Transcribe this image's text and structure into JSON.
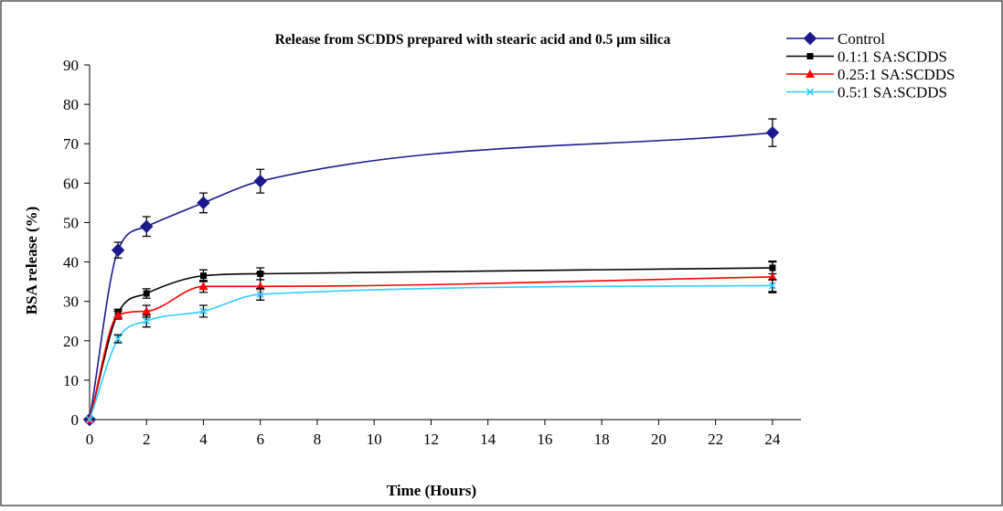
{
  "chart_data": {
    "type": "line",
    "title": "Release from SCDDS prepared with stearic acid and 0.5 μm silica",
    "xlabel": "Time (Hours)",
    "ylabel": "BSA release (%)",
    "xlim": [
      0,
      25
    ],
    "ylim": [
      0,
      90
    ],
    "xticks": [
      0,
      2,
      4,
      6,
      8,
      10,
      12,
      14,
      16,
      18,
      20,
      22,
      24
    ],
    "yticks": [
      0,
      10,
      20,
      30,
      40,
      50,
      60,
      70,
      80,
      90
    ],
    "grid": false,
    "legend_position": "top-right",
    "x": [
      0,
      1,
      2,
      4,
      6,
      24
    ],
    "series": [
      {
        "name": "Control",
        "color": "#1a1a8c",
        "marker": "diamond",
        "values": [
          0,
          43,
          49,
          55,
          60.5,
          72.8
        ],
        "errors": [
          0,
          2.0,
          2.5,
          2.5,
          3.0,
          3.5
        ]
      },
      {
        "name": "0.1:1 SA:SCDDS",
        "color": "#000000",
        "marker": "square",
        "values": [
          0,
          27,
          32,
          36.5,
          37,
          38.5
        ],
        "errors": [
          0,
          1.0,
          1.2,
          1.5,
          1.5,
          1.5
        ]
      },
      {
        "name": "0.25:1 SA:SCDDS",
        "color": "#ff0000",
        "marker": "triangle",
        "values": [
          0,
          26.5,
          27.5,
          33.8,
          33.8,
          36.2
        ],
        "errors": [
          0,
          1.0,
          1.5,
          1.5,
          3.5,
          4.0
        ]
      },
      {
        "name": "0.5:1 SA:SCDDS",
        "color": "#33ccff",
        "marker": "x",
        "values": [
          0,
          20.5,
          25,
          27.5,
          31.8,
          34
        ],
        "errors": [
          0,
          1.0,
          1.5,
          1.5,
          1.5,
          1.5
        ]
      }
    ]
  }
}
